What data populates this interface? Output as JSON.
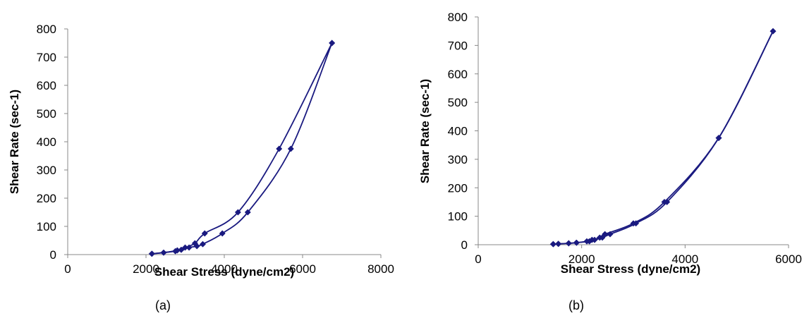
{
  "chart_data": [
    {
      "type": "scatter",
      "panel_label": "(a)",
      "xlabel": "Shear Stress (dyne/cm2)",
      "ylabel": "Shear Rate (sec-1)",
      "xlim": [
        0,
        8000
      ],
      "ylim": [
        0,
        800
      ],
      "x_ticks": [
        "0",
        "2000",
        "4000",
        "6000",
        "8000"
      ],
      "y_ticks": [
        "0",
        "100",
        "200",
        "300",
        "400",
        "500",
        "600",
        "700",
        "800"
      ],
      "marker": "diamond",
      "color": "#1a1a80",
      "series": [
        {
          "points": [
            [
              2150,
              3
            ],
            [
              2450,
              7
            ],
            [
              2800,
              15
            ],
            [
              3000,
              25
            ],
            [
              3250,
              40
            ],
            [
              3500,
              75
            ],
            [
              4350,
              150
            ],
            [
              5400,
              375
            ],
            [
              6750,
              750
            ]
          ]
        },
        {
          "points": [
            [
              2150,
              3
            ],
            [
              2450,
              7
            ],
            [
              2750,
              12
            ],
            [
              2900,
              17
            ],
            [
              3100,
              25
            ],
            [
              3300,
              30
            ],
            [
              3450,
              37
            ],
            [
              3950,
              75
            ],
            [
              4600,
              150
            ],
            [
              5700,
              375
            ],
            [
              6750,
              750
            ]
          ]
        }
      ]
    },
    {
      "type": "scatter",
      "panel_label": "(b)",
      "xlabel": "Shear Stress (dyne/cm2)",
      "ylabel": "Shear Rate (sec-1)",
      "xlim": [
        0,
        6000
      ],
      "ylim": [
        0,
        800
      ],
      "x_ticks": [
        "0",
        "2000",
        "4000",
        "6000"
      ],
      "y_ticks": [
        "0",
        "100",
        "200",
        "300",
        "400",
        "500",
        "600",
        "700",
        "800"
      ],
      "marker": "diamond",
      "color": "#1a1a80",
      "series": [
        {
          "points": [
            [
              1450,
              2
            ],
            [
              1550,
              3
            ],
            [
              1750,
              5
            ],
            [
              1900,
              7
            ],
            [
              2100,
              12
            ],
            [
              2200,
              17
            ],
            [
              2350,
              25
            ],
            [
              2450,
              37
            ],
            [
              3000,
              75
            ],
            [
              3600,
              150
            ],
            [
              4650,
              375
            ],
            [
              5700,
              750
            ]
          ]
        },
        {
          "points": [
            [
              1450,
              2
            ],
            [
              1550,
              3
            ],
            [
              1750,
              5
            ],
            [
              1900,
              7
            ],
            [
              2150,
              12
            ],
            [
              2250,
              17
            ],
            [
              2400,
              25
            ],
            [
              2550,
              37
            ],
            [
              3050,
              75
            ],
            [
              3650,
              150
            ],
            [
              4650,
              375
            ],
            [
              5700,
              750
            ]
          ]
        }
      ]
    }
  ]
}
